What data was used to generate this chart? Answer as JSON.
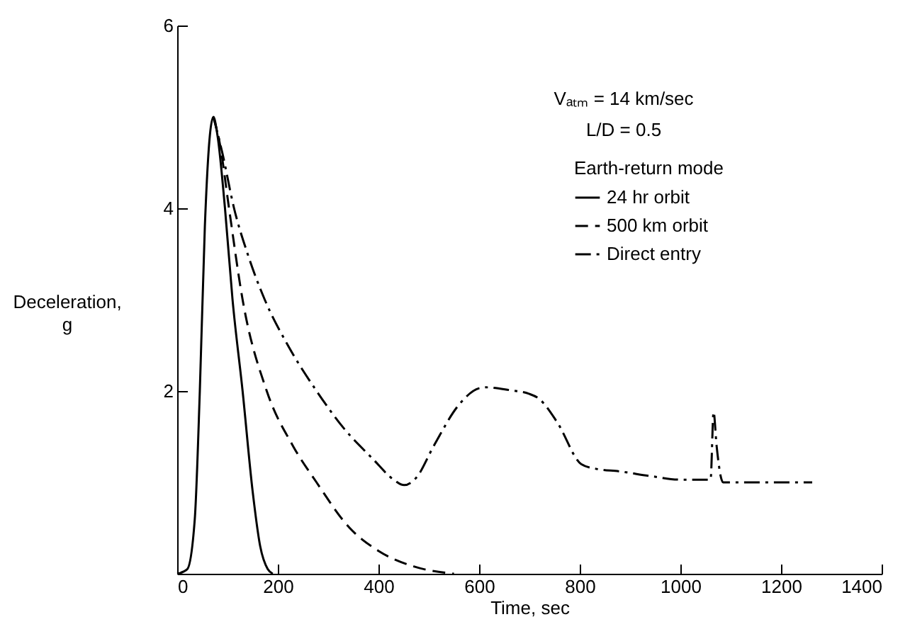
{
  "chart_data": {
    "type": "line",
    "xlabel": "Time, sec",
    "ylabel": "Deceleration, g",
    "legend_title": "Earth-return mode",
    "annotations": [
      "Vₐₜₘ = 14 km/sec",
      "L/D = 0.5"
    ],
    "xlim": [
      0,
      1400
    ],
    "xticks": [
      0,
      200,
      400,
      600,
      800,
      1000,
      1200,
      1400
    ],
    "ylim": [
      0,
      6
    ],
    "yticks": [
      2,
      4,
      6
    ],
    "grid": false,
    "legend": "top right",
    "marker": "none",
    "series": [
      {
        "name": "24 hr orbit",
        "color": "#000000",
        "line_style": "solid",
        "x": [
          0,
          20,
          35,
          45,
          55,
          65,
          72,
          80,
          95,
          110,
          130,
          150,
          165,
          180,
          190
        ],
        "values": [
          0,
          0.05,
          0.6,
          2,
          3.8,
          4.8,
          5,
          4.8,
          4,
          3,
          2,
          0.9,
          0.3,
          0.05,
          0
        ]
      },
      {
        "name": "500 km orbit",
        "color": "#000000",
        "line_style": "dashed",
        "x": [
          72,
          85,
          103,
          130,
          178,
          230,
          277,
          343,
          400,
          470,
          550
        ],
        "values": [
          5,
          4.7,
          4,
          3,
          2,
          1.4,
          1,
          0.5,
          0.25,
          0.08,
          0
        ]
      },
      {
        "name": "Direct entry",
        "color": "#000000",
        "line_style": "dashdot",
        "x": [
          72,
          90,
          113,
          140,
          174,
          220,
          277,
          330,
          390,
          430,
          451,
          475,
          510,
          560,
          600,
          614,
          660,
          699,
          718,
          755,
          803,
          831,
          879,
          940,
          1000,
          1060,
          1066,
          1072,
          1085,
          1262
        ],
        "values": [
          5,
          4.6,
          4,
          3.5,
          3,
          2.5,
          2,
          1.6,
          1.25,
          1.03,
          0.97,
          1.05,
          1.4,
          1.85,
          2.03,
          2.04,
          2.01,
          1.97,
          1.92,
          1.66,
          1.2,
          1.15,
          1.12,
          1.07,
          1.03,
          1.03,
          1.77,
          1.4,
          1.0,
          1.0
        ]
      }
    ]
  }
}
